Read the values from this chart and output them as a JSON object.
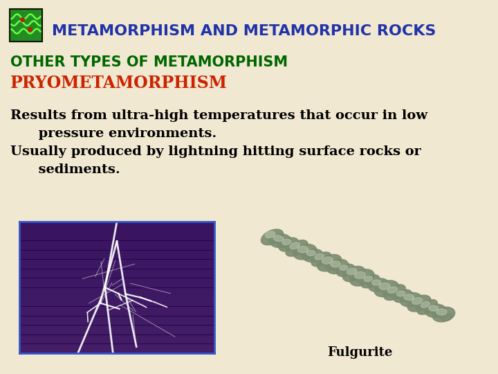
{
  "title": "METAMORPHISM AND METAMORPHIC ROCKS",
  "title_color": "#2233AA",
  "subtitle1": "OTHER TYPES OF METAMORPHISM",
  "subtitle1_color": "#006600",
  "subtitle2": "PRYOMETAMORPHISM",
  "subtitle2_color": "#CC2200",
  "body_line1": "Results from ultra-high temperatures that occur in low",
  "body_line2": "      pressure environments.",
  "body_line3": "Usually produced by lightning hitting surface rocks or",
  "body_line4": "      sediments.",
  "body_color": "#000000",
  "caption": "Fulgurite",
  "caption_color": "#000000",
  "bg_color": "#F0E8D0",
  "title_fontsize": 16,
  "subtitle1_fontsize": 15,
  "subtitle2_fontsize": 17,
  "body_fontsize": 14,
  "caption_fontsize": 13,
  "icon_bg": "#DD2222",
  "icon_inner": "#228B22",
  "icon_wave": "#66FF44",
  "lightning_bg": "#2B0050",
  "fulgurite_bg": "#080808"
}
